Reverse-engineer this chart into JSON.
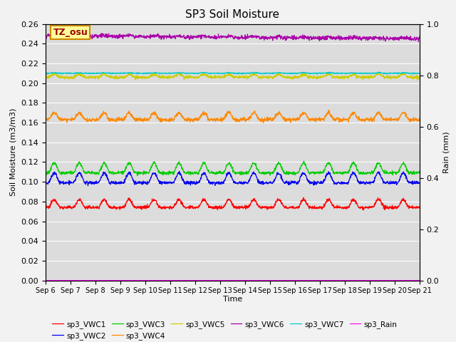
{
  "title": "SP3 Soil Moisture",
  "xlabel": "Time",
  "ylabel_left": "Soil Moisture (m3/m3)",
  "ylabel_right": "Rain (mm)",
  "date_labels": [
    "Sep 6",
    "Sep 7",
    "Sep 8",
    "Sep 9",
    "Sep 10",
    "Sep 11",
    "Sep 12",
    "Sep 13",
    "Sep 14",
    "Sep 15",
    "Sep 16",
    "Sep 17",
    "Sep 18",
    "Sep 19",
    "Sep 20",
    "Sep 21"
  ],
  "tz_label": "TZ_osu",
  "tz_bg": "#FFFF99",
  "tz_border": "#CC8800",
  "bg_color": "#DCDCDC",
  "grid_color": "#FFFFFF",
  "series": {
    "sp3_VWC1": {
      "color": "#FF0000",
      "base": 0.074,
      "amp": 0.008,
      "noise": 0.0008
    },
    "sp3_VWC2": {
      "color": "#0000EE",
      "base": 0.099,
      "amp": 0.01,
      "noise": 0.0008
    },
    "sp3_VWC3": {
      "color": "#00CC00",
      "base": 0.109,
      "amp": 0.01,
      "noise": 0.0008
    },
    "sp3_VWC4": {
      "color": "#FF8800",
      "base": 0.163,
      "amp": 0.007,
      "noise": 0.001
    },
    "sp3_VWC5": {
      "color": "#CCCC00",
      "base": 0.206,
      "amp": 0.003,
      "noise": 0.0008
    },
    "sp3_VWC6": {
      "color": "#AA00AA",
      "base": 0.248,
      "amp": 0.001,
      "noise": 0.001,
      "trend": -0.0002
    },
    "sp3_VWC7": {
      "color": "#00CCCC",
      "base": 0.21,
      "amp": 0.0005,
      "noise": 0.0003
    },
    "sp3_Rain": {
      "color": "#FF00FF",
      "base": 0.0,
      "amp": 0.0,
      "noise": 0.0
    }
  },
  "legend_ncols": 6,
  "legend_row2": [
    "sp3_VWC7",
    "sp3_Rain"
  ]
}
